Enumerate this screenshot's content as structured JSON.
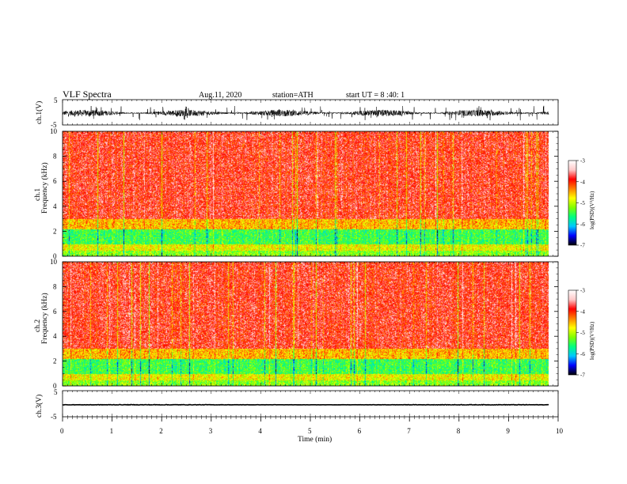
{
  "header": {
    "title": "VLF  Spectra",
    "date": "Aug.11, 2020",
    "station": "station=ATH",
    "start": "start  UT  =   8  :40: 1"
  },
  "chart_data": [
    {
      "type": "line",
      "panel": "ch1-waveform",
      "ylabel": "ch.1(V)",
      "ylim": [
        -5,
        5
      ],
      "yticks": [
        "5",
        "-5"
      ],
      "description_values": {
        "mean_volts": -0.3,
        "amplitude_volts": 1.3
      }
    },
    {
      "type": "heatmap",
      "panel": "ch1-spectrogram",
      "ylabel_top": "ch.1",
      "ylabel": "Frequency  (kHz)",
      "ylim": [
        0,
        10
      ],
      "yticks": [
        "0",
        "2",
        "4",
        "6",
        "8",
        "10"
      ],
      "colorbar": {
        "label": "log(PSD)(V²/Hz)",
        "range": [
          -7,
          -3
        ],
        "ticks": [
          "-3",
          "-4",
          "-5",
          "-6",
          "-7"
        ]
      }
    },
    {
      "type": "heatmap",
      "panel": "ch2-spectrogram",
      "ylabel_top": "ch.2",
      "ylabel": "Frequency  (kHz)",
      "ylim": [
        0,
        10
      ],
      "yticks": [
        "0",
        "2",
        "4",
        "6",
        "8",
        "10"
      ],
      "colorbar": {
        "label": "log(PSD)(V²/Hz)",
        "range": [
          -7,
          -3
        ],
        "ticks": [
          "-3",
          "-4",
          "-5",
          "-6",
          "-7"
        ]
      }
    },
    {
      "type": "line",
      "panel": "ch3-waveform",
      "ylabel": "ch.3(V)",
      "ylim": [
        -5,
        5
      ],
      "yticks": [
        "5",
        "-5"
      ],
      "xlabel": "Time  (min)",
      "xlim": [
        0,
        10
      ],
      "xticks": [
        "0",
        "1",
        "2",
        "3",
        "4",
        "5",
        "6",
        "7",
        "8",
        "9",
        "10"
      ],
      "description_values": {
        "mean_volts": -0.4,
        "amplitude_volts": 0.1
      }
    }
  ],
  "colors": {
    "spectrogram_palette": [
      "#000000",
      "#0000ff",
      "#00c8ff",
      "#00ff80",
      "#80ff00",
      "#ffff00",
      "#ff8000",
      "#ff0000",
      "#ffc8c8",
      "#ffffff"
    ]
  }
}
